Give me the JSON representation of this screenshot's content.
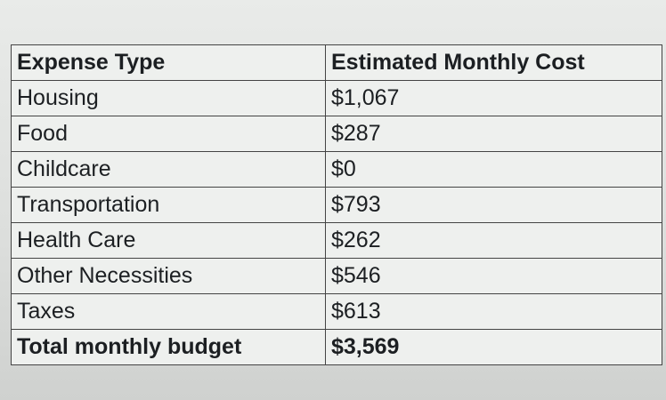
{
  "table": {
    "header": [
      "Expense Type",
      "Estimated Monthly Cost"
    ],
    "rows": [
      [
        "Housing",
        "$1,067"
      ],
      [
        "Food",
        "$287"
      ],
      [
        "Childcare",
        "$0"
      ],
      [
        "Transportation",
        "$793"
      ],
      [
        "Health Care",
        "$262"
      ],
      [
        "Other Necessities",
        "$546"
      ],
      [
        "Taxes",
        "$613"
      ]
    ],
    "total": [
      "Total monthly budget",
      "$3,569"
    ]
  }
}
